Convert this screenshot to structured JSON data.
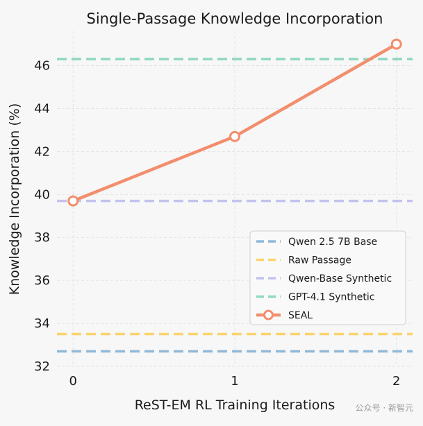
{
  "chart_data": {
    "type": "line",
    "title": "Single-Passage Knowledge Incorporation",
    "xlabel": "ReST-EM RL Training Iterations",
    "ylabel": "Knowledge Incorporation (%)",
    "x": [
      0,
      1,
      2
    ],
    "xticks": [
      "0",
      "1",
      "2"
    ],
    "xlim": [
      -0.1,
      2.1
    ],
    "ylim": [
      32,
      47.6
    ],
    "yticks": [
      "32",
      "34",
      "36",
      "38",
      "40",
      "42",
      "44",
      "46"
    ],
    "grid": true,
    "legend_position": "lower-right",
    "series": [
      {
        "name": "SEAL",
        "values": [
          39.7,
          42.7,
          47.0
        ],
        "color": "#f28e6d",
        "style": "solid-marker"
      }
    ],
    "baselines": [
      {
        "name": "Qwen 2.5 7B Base",
        "value": 32.7,
        "color": "#8fb8d8",
        "style": "dashed"
      },
      {
        "name": "Raw Passage",
        "value": 33.5,
        "color": "#fbd36e",
        "style": "dashed"
      },
      {
        "name": "Qwen-Base Synthetic",
        "value": 39.7,
        "color": "#c4c3ee",
        "style": "dashed"
      },
      {
        "name": "GPT-4.1 Synthetic",
        "value": 46.3,
        "color": "#8fd9c0",
        "style": "dashed"
      }
    ]
  },
  "watermark": "公众号 · 新智元"
}
